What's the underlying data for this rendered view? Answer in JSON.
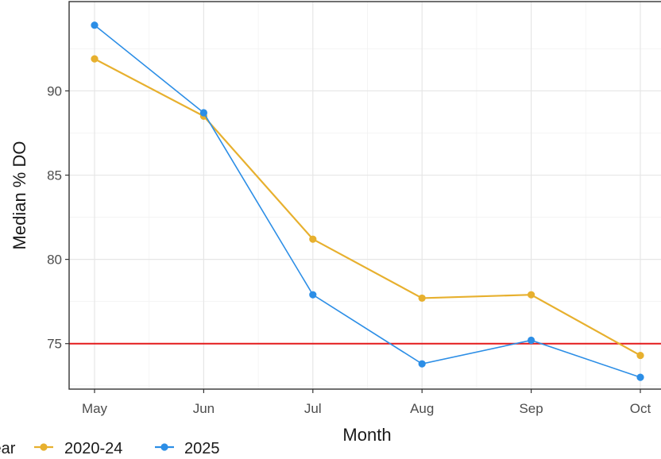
{
  "chart_data": {
    "type": "line",
    "title": "",
    "xlabel": "Month",
    "ylabel": "Median % DO",
    "categories": [
      "May",
      "Jun",
      "Jul",
      "Aug",
      "Sep",
      "Oct"
    ],
    "ylim": [
      72.3,
      95.3
    ],
    "yticks": [
      75,
      80,
      85,
      90
    ],
    "grid": true,
    "reference_line": {
      "y": 75,
      "color": "#e41a1c"
    },
    "legend": {
      "title": "Year",
      "position": "bottom-left"
    },
    "series": [
      {
        "name": "2020-24",
        "color": "#e7b02e",
        "values": [
          91.9,
          88.5,
          81.2,
          77.7,
          77.9,
          74.3
        ]
      },
      {
        "name": "2025",
        "color": "#2c8ee6",
        "values": [
          93.9,
          88.7,
          77.9,
          73.8,
          75.2,
          73.0
        ]
      }
    ]
  }
}
